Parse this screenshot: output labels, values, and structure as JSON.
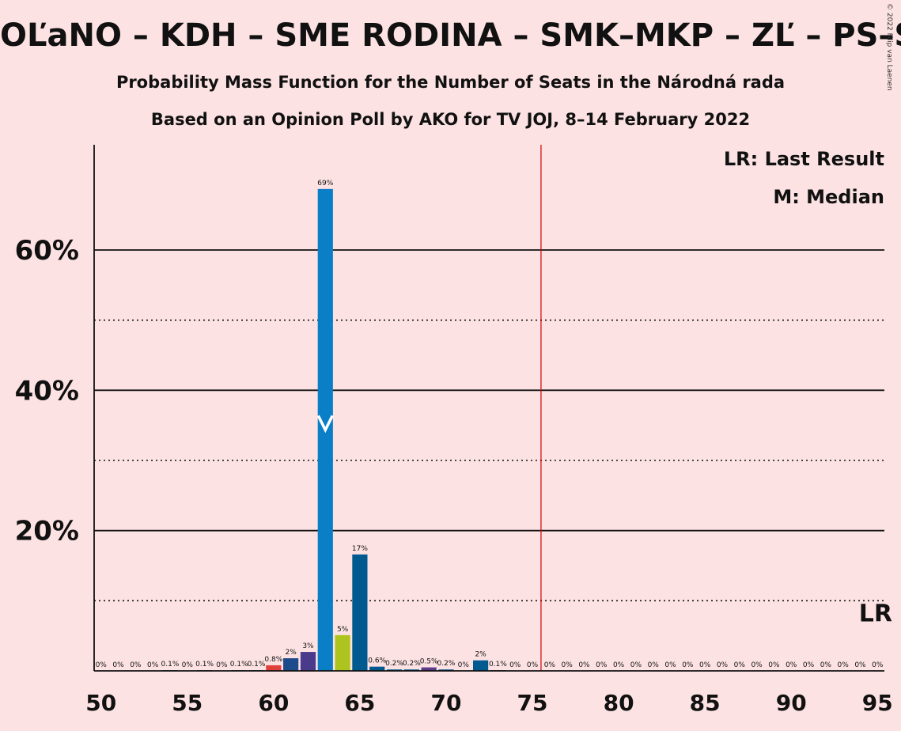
{
  "header": {
    "title": "OĽaNO – KDH – SME RODINA – SMK–MKP – ZĽ – PS–SPOLU",
    "subtitle1": "Probability Mass Function for the Number of Seats in the Národná rada",
    "subtitle2": "Based on an Opinion Poll by AKO for TV JOJ, 8–14 February 2022",
    "copyright": "© 2022 Filip van Laenen"
  },
  "chart_data": {
    "type": "bar",
    "x": [
      50,
      51,
      52,
      53,
      54,
      55,
      56,
      57,
      58,
      59,
      60,
      61,
      62,
      63,
      64,
      65,
      66,
      67,
      68,
      69,
      70,
      71,
      72,
      73,
      74,
      75,
      76,
      77,
      78,
      79,
      80,
      81,
      82,
      83,
      84,
      85,
      86,
      87,
      88,
      89,
      90,
      91,
      92,
      93,
      94,
      95
    ],
    "values": [
      0,
      0,
      0,
      0,
      0.1,
      0,
      0.1,
      0,
      0.1,
      0.1,
      0.8,
      1.8,
      2.7,
      68.7,
      5.1,
      16.6,
      0.6,
      0.2,
      0.2,
      0.5,
      0.2,
      0,
      1.5,
      0.1,
      0,
      0,
      0,
      0,
      0,
      0,
      0,
      0,
      0,
      0,
      0,
      0,
      0,
      0,
      0,
      0,
      0,
      0,
      0,
      0,
      0,
      0
    ],
    "data_labels": [
      "0%",
      "0%",
      "0%",
      "0%",
      "0.1%",
      "0%",
      "0.1%",
      "0%",
      "0.1%",
      "0.1%",
      "0.8%",
      "2%",
      "3%",
      "69%",
      "5%",
      "17%",
      "0.6%",
      "0.2%",
      "0.2%",
      "0.5%",
      "0.2%",
      "0%",
      "2%",
      "0.1%",
      "0%",
      "0%",
      "0%",
      "0%",
      "0%",
      "0%",
      "0%",
      "0%",
      "0%",
      "0%",
      "0%",
      "0%",
      "0%",
      "0%",
      "0%",
      "0%",
      "0%",
      "0%",
      "0%",
      "0%",
      "0%",
      "0%"
    ],
    "bar_colors": {
      "60": "#e0403a",
      "61": "#1c4b8c",
      "62": "#4a3a8c",
      "63": "#0a7fc8",
      "64": "#aec41e",
      "65": "#005a8f",
      "66": "#005a8f",
      "69": "#5c3a8c",
      "72": "#005a8f",
      "default": "#005a8f"
    },
    "xticks": [
      50,
      55,
      60,
      65,
      70,
      75,
      80,
      85,
      90,
      95
    ],
    "xtick_labels": [
      "50",
      "55",
      "60",
      "65",
      "70",
      "75",
      "80",
      "85",
      "90",
      "95"
    ],
    "yticks": [
      20,
      40,
      60
    ],
    "ytick_labels": [
      "20%",
      "40%",
      "60%"
    ],
    "ylim": [
      0,
      75
    ],
    "xlim": [
      49.6,
      95.4
    ],
    "solid_gridlines": [
      20,
      40,
      60
    ],
    "dotted_gridlines": [
      10,
      30,
      50
    ],
    "majority_line": 75.5,
    "last_result": 95,
    "last_result_label": "LR",
    "median": 63,
    "legend": [
      "LR: Last Result",
      "M: Median"
    ],
    "legend_placement": "top-right"
  }
}
